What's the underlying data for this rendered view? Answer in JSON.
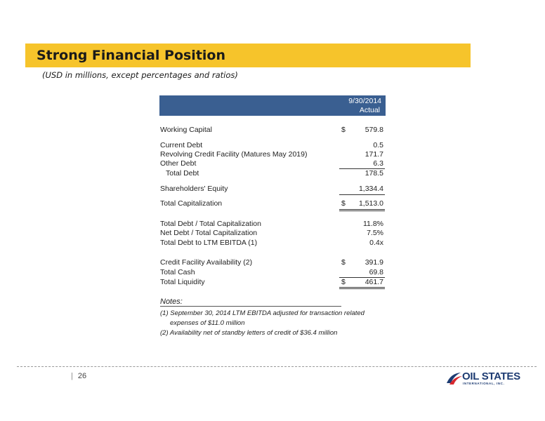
{
  "title": "Strong Financial Position",
  "subtitle": "(USD in millions, except percentages and ratios)",
  "table": {
    "header_line1": "9/30/2014",
    "header_line2": "Actual",
    "rows": [
      {
        "label": "Working Capital",
        "currency": "$",
        "value": "579.8"
      },
      {
        "label": "Current Debt",
        "currency": "",
        "value": "0.5"
      },
      {
        "label": "Revolving Credit Facility (Matures May 2019)",
        "currency": "",
        "value": "171.7"
      },
      {
        "label": "Other Debt",
        "currency": "",
        "value": "6.3"
      },
      {
        "label": "Total Debt",
        "currency": "",
        "value": "178.5"
      },
      {
        "label": "Shareholders' Equity",
        "currency": "",
        "value": "1,334.4"
      },
      {
        "label": "Total Capitalization",
        "currency": "$",
        "value": "1,513.0"
      },
      {
        "label": "Total Debt / Total Capitalization",
        "currency": "",
        "value": "11.8%"
      },
      {
        "label": "Net Debt / Total Capitalization",
        "currency": "",
        "value": "7.5%"
      },
      {
        "label": "Total Debt to LTM EBITDA (1)",
        "currency": "",
        "value": "0.4x"
      },
      {
        "label": "Credit Facility Availability (2)",
        "currency": "$",
        "value": "391.9"
      },
      {
        "label": "Total Cash",
        "currency": "",
        "value": "69.8"
      },
      {
        "label": "Total Liquidity",
        "currency": "$",
        "value": "461.7"
      }
    ]
  },
  "notes": {
    "title": "Notes:",
    "note1_line1": "(1) September 30, 2014 LTM EBITDA adjusted for transaction related",
    "note1_line2": "expenses of $11.0 million",
    "note2": "(2) Availability net of standby letters of credit of $36.4 million"
  },
  "footer": {
    "separator": "|",
    "page_number": "26",
    "logo_text": "OIL STATES",
    "logo_subtext": "INTERNATIONAL, INC.",
    "logo_color": "#1d3b72",
    "logo_accent": "#d7282f"
  },
  "colors": {
    "title_bar": "#f6c42b",
    "table_header": "#3a5f91"
  }
}
